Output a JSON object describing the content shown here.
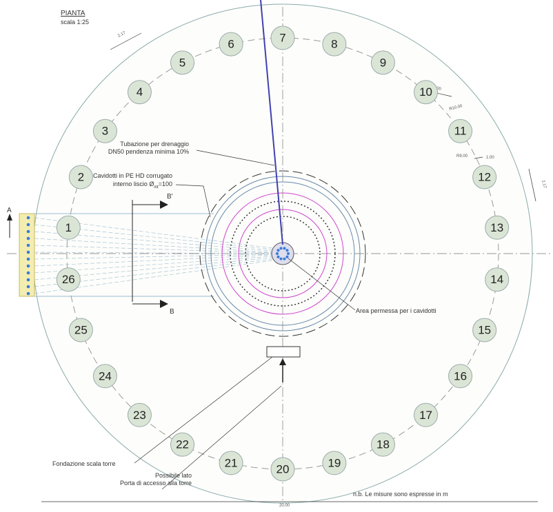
{
  "header": {
    "title": "PIANTA",
    "scale": "scala 1:25"
  },
  "anchors": [
    "1",
    "2",
    "3",
    "4",
    "5",
    "6",
    "7",
    "8",
    "9",
    "10",
    "11",
    "12",
    "13",
    "14",
    "15",
    "16",
    "17",
    "18",
    "19",
    "20",
    "21",
    "22",
    "23",
    "24",
    "25",
    "26"
  ],
  "notes": {
    "drain": [
      "Tubazione per drenaggio",
      "DN50 pendenza minima 10%"
    ],
    "conduits": {
      "line1": "12 Cavidotti in PE HD corrugato",
      "before": "interno liscio Ø",
      "sub": "int",
      "after": "=100"
    },
    "area": "Area permessa per i cavidotti",
    "stair": "Fondazione scala torre",
    "door": [
      "Possibile lato",
      "Porta di accesso alla torre"
    ],
    "nb": "n.b.  Le misure sono espresse in m"
  },
  "dimensions": {
    "top_left": "2.17",
    "right": "2.17",
    "spacing_top": "1.00",
    "spacing_right": "1.00",
    "outer_radius": "R10.00",
    "anchor_radius": "R9.00",
    "diameter": "20.00"
  },
  "sections": {
    "a": "A",
    "b_top": "B'",
    "b_bottom": "B"
  }
}
